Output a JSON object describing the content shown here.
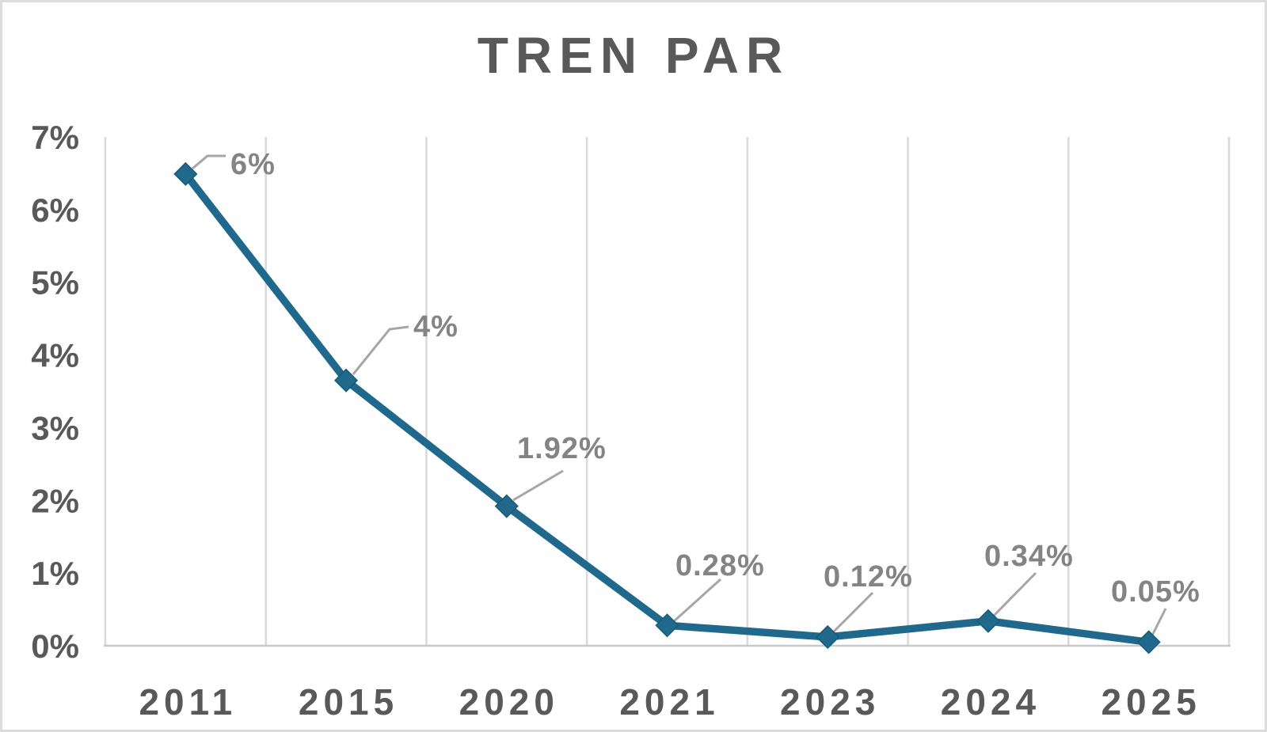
{
  "chart_data": {
    "type": "line",
    "title": "TREN PAR",
    "categories": [
      "2011",
      "2015",
      "2020",
      "2021",
      "2023",
      "2024",
      "2025"
    ],
    "series": [
      {
        "name": "TREN PAR",
        "values": [
          6.49,
          3.65,
          1.92,
          0.28,
          0.12,
          0.34,
          0.05
        ],
        "data_labels": [
          "6%",
          "4%",
          "1.92%",
          "0.28%",
          "0.12%",
          "0.34%",
          "0.05%"
        ]
      }
    ],
    "xlabel": "",
    "ylabel": "",
    "y_tick_labels": [
      "0%",
      "1%",
      "2%",
      "3%",
      "4%",
      "5%",
      "6%",
      "7%"
    ],
    "y_tick_values": [
      0,
      1,
      2,
      3,
      4,
      5,
      6,
      7
    ],
    "ylim": [
      0,
      7
    ],
    "grid": "vertical-only",
    "legend_position": "none",
    "marker_shape": "diamond",
    "colors": {
      "line": "#20698C",
      "marker": "#20698C",
      "marker_edge": "#175A78",
      "data_label": "#848484",
      "leader_line": "#A6A6A6",
      "axis_label": "#595959",
      "title": "#595959",
      "gridline": "#D9D9D9",
      "axis_line": "#C9C9C9",
      "background": "#FFFFFF",
      "frame_border": "#DCDCDC"
    }
  }
}
